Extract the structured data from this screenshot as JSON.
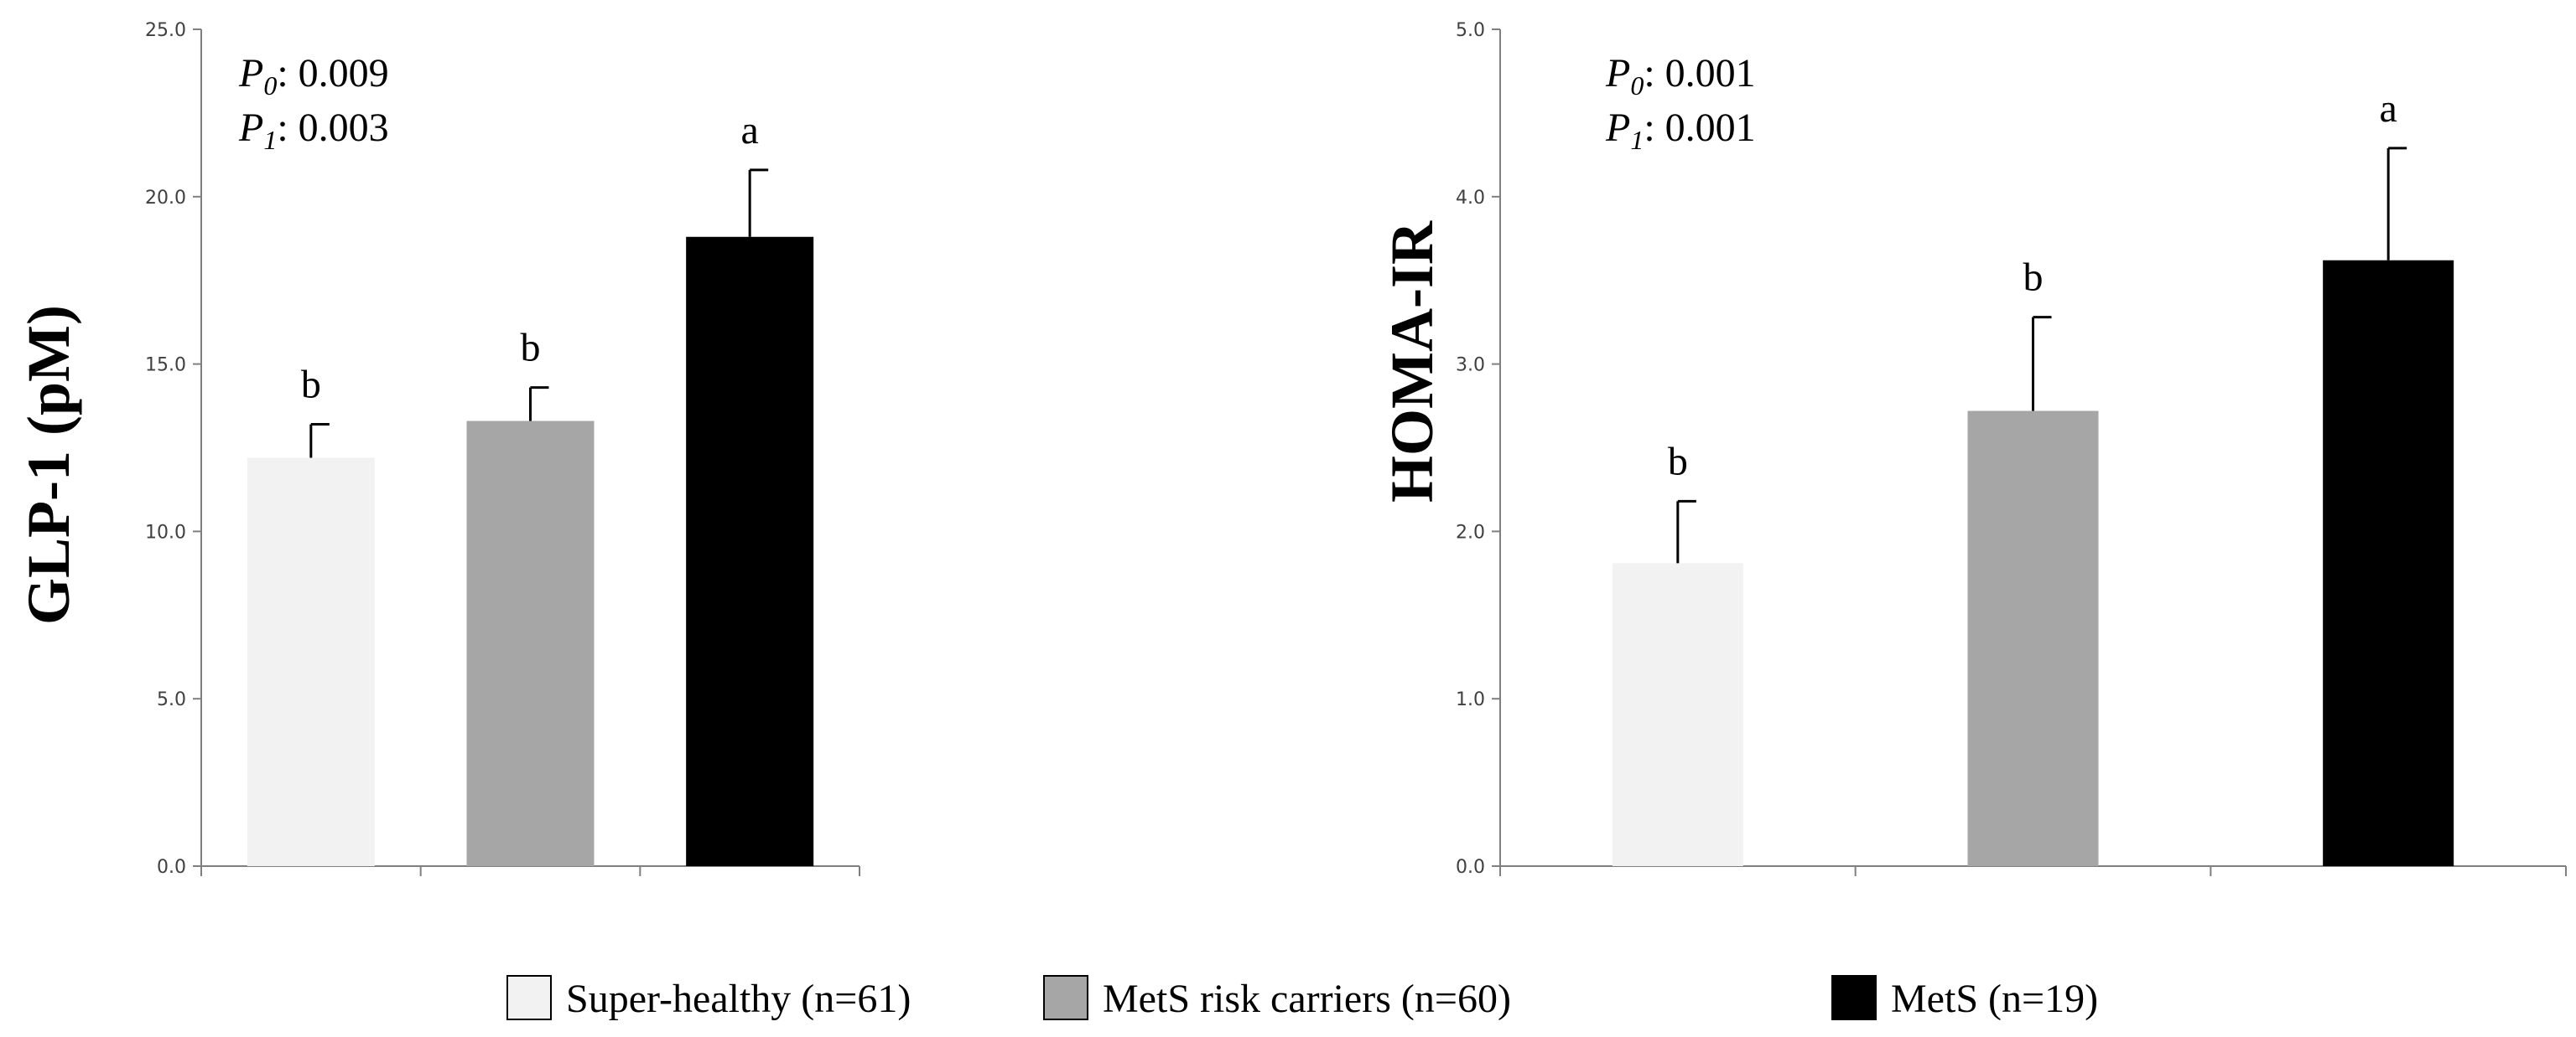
{
  "chart_data": [
    {
      "type": "bar",
      "ylabel": "GLP-1 (pM)",
      "ylim": [
        0,
        25
      ],
      "yticks": [
        "0.0",
        "5.0",
        "10.0",
        "15.0",
        "20.0",
        "25.0"
      ],
      "categories": [
        "Super-healthy (n=61)",
        "MetS risk carriers (n=60)",
        "MetS (n=19)"
      ],
      "values": [
        12.2,
        13.3,
        18.8
      ],
      "errors": [
        1.0,
        1.0,
        2.0
      ],
      "significance": [
        "b",
        "b",
        "a"
      ],
      "pvalues": [
        {
          "label": "P",
          "sub": "0",
          "value": ": 0.009"
        },
        {
          "label": "P",
          "sub": "1",
          "value": ": 0.003"
        }
      ]
    },
    {
      "type": "bar",
      "ylabel": "HOMA-IR",
      "ylim": [
        0,
        5
      ],
      "yticks": [
        "0.0",
        "1.0",
        "2.0",
        "3.0",
        "4.0",
        "5.0"
      ],
      "categories": [
        "Super-healthy (n=61)",
        "MetS risk carriers (n=60)",
        "MetS (n=19)"
      ],
      "values": [
        1.81,
        2.72,
        3.62
      ],
      "errors": [
        0.37,
        0.56,
        0.67
      ],
      "significance": [
        "b",
        "b",
        "a"
      ],
      "pvalues": [
        {
          "label": "P",
          "sub": "0",
          "value": ": 0.001"
        },
        {
          "label": "P",
          "sub": "1",
          "value": ": 0.001"
        }
      ]
    }
  ],
  "legend": [
    {
      "label": "Super-healthy (n=61)",
      "color": "#f2f2f2"
    },
    {
      "label": "MetS risk carriers (n=60)",
      "color": "#a6a6a6"
    },
    {
      "label": "MetS (n=19)",
      "color": "#000000"
    }
  ],
  "colors": {
    "axis": "#7f7f7f",
    "text": "#000000"
  }
}
